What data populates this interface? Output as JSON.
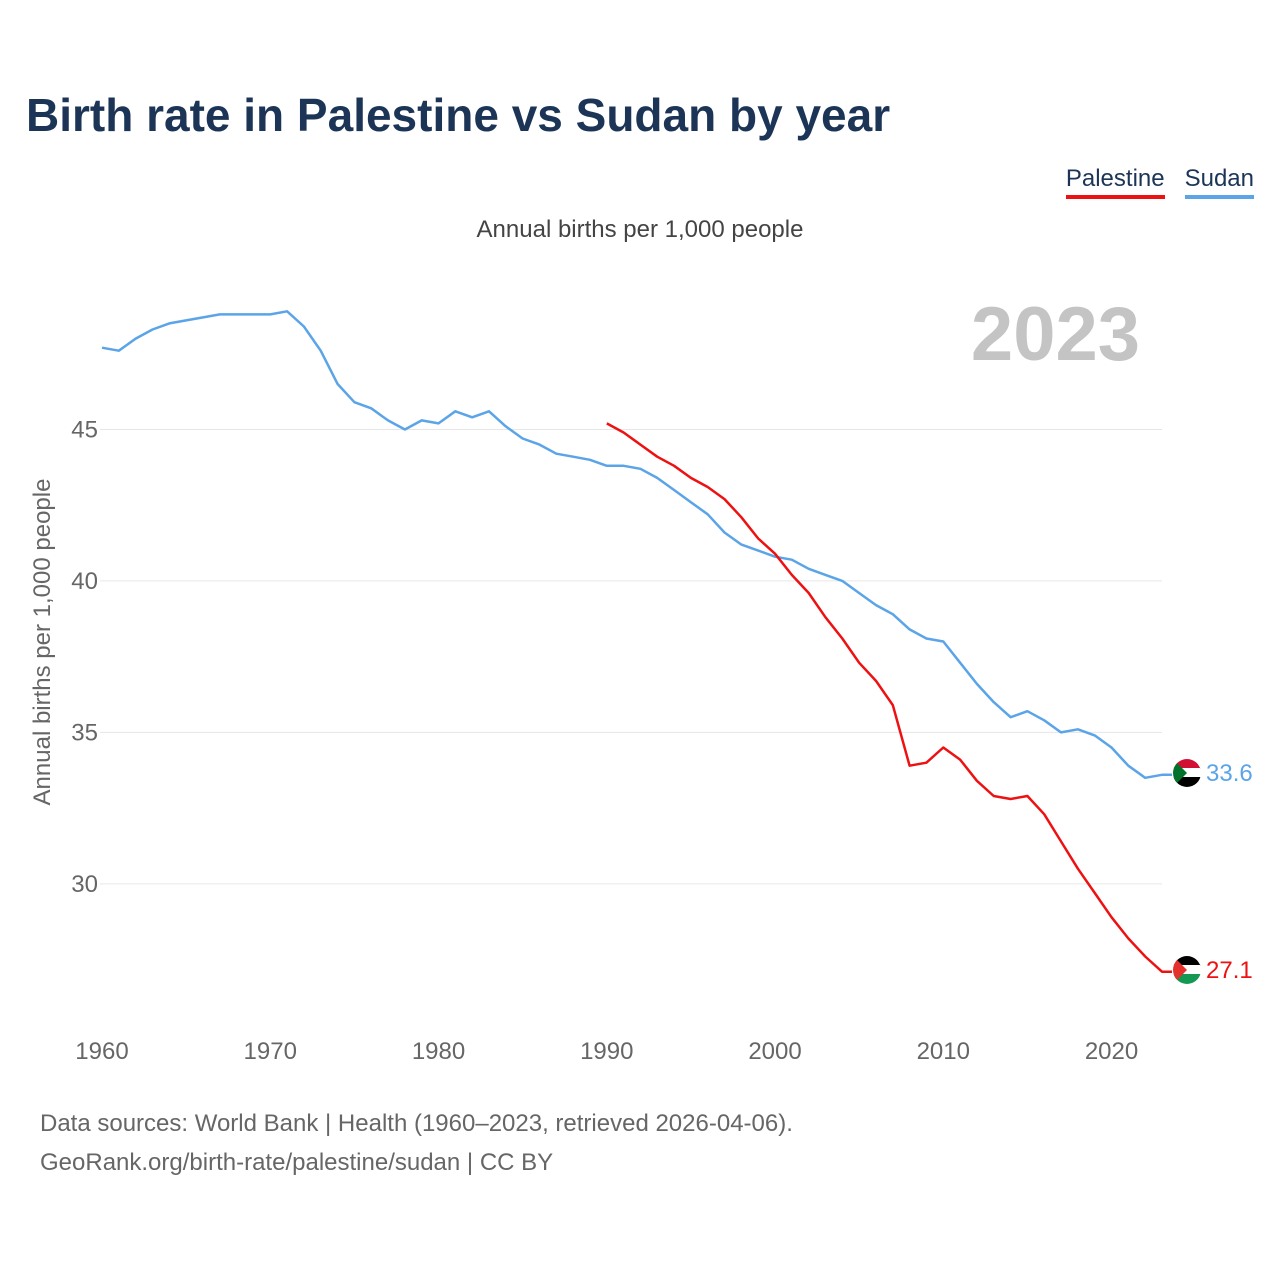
{
  "title": "Birth rate in Palestine vs Sudan by year",
  "subtitle": "Annual births per 1,000 people",
  "legend": [
    {
      "label": "Palestine",
      "color": "#ee1111"
    },
    {
      "label": "Sudan",
      "color": "#5ba4e8"
    }
  ],
  "year_watermark": "2023",
  "footer": {
    "line1": "Data sources: World Bank | Health (1960–2023, retrieved 2026-04-06).",
    "line2": "GeoRank.org/birth-rate/palestine/sudan | CC BY"
  },
  "chart_data": {
    "type": "line",
    "title": "Birth rate in Palestine vs Sudan by year",
    "ylabel": "Annual births per 1,000 people",
    "xlabel": "",
    "xlim": [
      1960,
      2023
    ],
    "ylim": [
      26,
      50
    ],
    "x_ticks": [
      1960,
      1970,
      1980,
      1990,
      2000,
      2010,
      2020
    ],
    "y_ticks": [
      30,
      35,
      40,
      45
    ],
    "grid": true,
    "series": [
      {
        "name": "Sudan",
        "color": "#5ba4e8",
        "end_label": "33.6",
        "flag": "sudan",
        "points": [
          [
            1960,
            47.7
          ],
          [
            1961,
            47.6
          ],
          [
            1962,
            48.0
          ],
          [
            1963,
            48.3
          ],
          [
            1964,
            48.5
          ],
          [
            1965,
            48.6
          ],
          [
            1966,
            48.7
          ],
          [
            1967,
            48.8
          ],
          [
            1968,
            48.8
          ],
          [
            1969,
            48.8
          ],
          [
            1970,
            48.8
          ],
          [
            1971,
            48.9
          ],
          [
            1972,
            48.4
          ],
          [
            1973,
            47.6
          ],
          [
            1974,
            46.5
          ],
          [
            1975,
            45.9
          ],
          [
            1976,
            45.7
          ],
          [
            1977,
            45.3
          ],
          [
            1978,
            45.0
          ],
          [
            1979,
            45.3
          ],
          [
            1980,
            45.2
          ],
          [
            1981,
            45.6
          ],
          [
            1982,
            45.4
          ],
          [
            1983,
            45.6
          ],
          [
            1984,
            45.1
          ],
          [
            1985,
            44.7
          ],
          [
            1986,
            44.5
          ],
          [
            1987,
            44.2
          ],
          [
            1988,
            44.1
          ],
          [
            1989,
            44.0
          ],
          [
            1990,
            43.8
          ],
          [
            1991,
            43.8
          ],
          [
            1992,
            43.7
          ],
          [
            1993,
            43.4
          ],
          [
            1994,
            43.0
          ],
          [
            1995,
            42.6
          ],
          [
            1996,
            42.2
          ],
          [
            1997,
            41.6
          ],
          [
            1998,
            41.2
          ],
          [
            1999,
            41.0
          ],
          [
            2000,
            40.8
          ],
          [
            2001,
            40.7
          ],
          [
            2002,
            40.4
          ],
          [
            2003,
            40.2
          ],
          [
            2004,
            40.0
          ],
          [
            2005,
            39.6
          ],
          [
            2006,
            39.2
          ],
          [
            2007,
            38.9
          ],
          [
            2008,
            38.4
          ],
          [
            2009,
            38.1
          ],
          [
            2010,
            38.0
          ],
          [
            2011,
            37.3
          ],
          [
            2012,
            36.6
          ],
          [
            2013,
            36.0
          ],
          [
            2014,
            35.5
          ],
          [
            2015,
            35.7
          ],
          [
            2016,
            35.4
          ],
          [
            2017,
            35.0
          ],
          [
            2018,
            35.1
          ],
          [
            2019,
            34.9
          ],
          [
            2020,
            34.5
          ],
          [
            2021,
            33.9
          ],
          [
            2022,
            33.5
          ],
          [
            2023,
            33.6
          ]
        ]
      },
      {
        "name": "Palestine",
        "color": "#ee1111",
        "end_label": "27.1",
        "flag": "palestine",
        "points": [
          [
            1990,
            45.2
          ],
          [
            1991,
            44.9
          ],
          [
            1992,
            44.5
          ],
          [
            1993,
            44.1
          ],
          [
            1994,
            43.8
          ],
          [
            1995,
            43.4
          ],
          [
            1996,
            43.1
          ],
          [
            1997,
            42.7
          ],
          [
            1998,
            42.1
          ],
          [
            1999,
            41.4
          ],
          [
            2000,
            40.9
          ],
          [
            2001,
            40.2
          ],
          [
            2002,
            39.6
          ],
          [
            2003,
            38.8
          ],
          [
            2004,
            38.1
          ],
          [
            2005,
            37.3
          ],
          [
            2006,
            36.7
          ],
          [
            2007,
            35.9
          ],
          [
            2008,
            33.9
          ],
          [
            2009,
            34.0
          ],
          [
            2010,
            34.5
          ],
          [
            2011,
            34.1
          ],
          [
            2012,
            33.4
          ],
          [
            2013,
            32.9
          ],
          [
            2014,
            32.8
          ],
          [
            2015,
            32.9
          ],
          [
            2016,
            32.3
          ],
          [
            2017,
            31.4
          ],
          [
            2018,
            30.5
          ],
          [
            2019,
            29.7
          ],
          [
            2020,
            28.9
          ],
          [
            2021,
            28.2
          ],
          [
            2022,
            27.6
          ],
          [
            2023,
            27.1
          ]
        ]
      }
    ]
  }
}
